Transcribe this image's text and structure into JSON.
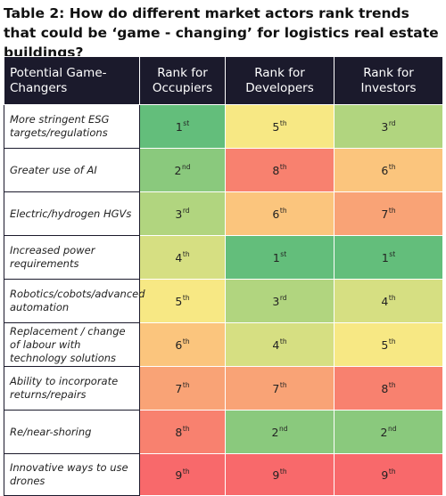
{
  "title": "Table 2: How do different market actors rank trends that could be ‘game - changing’ for logistics real estate buildings?",
  "headers": [
    "Potential Game-Changers",
    "Rank for Occupiers",
    "Rank for Developers",
    "Rank for Investors"
  ],
  "rows": [
    {
      "label": "More stringent ESG targets/regulations",
      "cells": [
        {
          "num": "1",
          "suf": "st",
          "color": "#63be7b"
        },
        {
          "num": "5",
          "suf": "th",
          "color": "#f7e884"
        },
        {
          "num": "3",
          "suf": "rd",
          "color": "#b1d57f"
        }
      ]
    },
    {
      "label": "Greater use of AI",
      "cells": [
        {
          "num": "2",
          "suf": "nd",
          "color": "#8ac97d"
        },
        {
          "num": "8",
          "suf": "th",
          "color": "#f8816f"
        },
        {
          "num": "6",
          "suf": "th",
          "color": "#fbc57d"
        }
      ]
    },
    {
      "label": "Electric/hydrogen HGVs",
      "cells": [
        {
          "num": "3",
          "suf": "rd",
          "color": "#b1d57f"
        },
        {
          "num": "6",
          "suf": "th",
          "color": "#fbc57d"
        },
        {
          "num": "7",
          "suf": "th",
          "color": "#f9a376"
        }
      ]
    },
    {
      "label": "Increased power requirements",
      "cells": [
        {
          "num": "4",
          "suf": "th",
          "color": "#d6df82"
        },
        {
          "num": "1",
          "suf": "st",
          "color": "#63be7b"
        },
        {
          "num": "1",
          "suf": "st",
          "color": "#63be7b"
        }
      ]
    },
    {
      "label": "Robotics/cobots/advanced automation",
      "cells": [
        {
          "num": "5",
          "suf": "th",
          "color": "#f7e884"
        },
        {
          "num": "3",
          "suf": "rd",
          "color": "#b1d57f"
        },
        {
          "num": "4",
          "suf": "th",
          "color": "#d6df82"
        }
      ]
    },
    {
      "label": "Replacement / change of labour with technology solutions",
      "cells": [
        {
          "num": "6",
          "suf": "th",
          "color": "#fbc57d"
        },
        {
          "num": "4",
          "suf": "th",
          "color": "#d6df82"
        },
        {
          "num": "5",
          "suf": "th",
          "color": "#f7e884"
        }
      ]
    },
    {
      "label": "Ability to incorporate returns/repairs",
      "cells": [
        {
          "num": "7",
          "suf": "th",
          "color": "#f9a376"
        },
        {
          "num": "7",
          "suf": "th",
          "color": "#f9a376"
        },
        {
          "num": "8",
          "suf": "th",
          "color": "#f8816f"
        }
      ]
    },
    {
      "label": "Re/near-shoring",
      "cells": [
        {
          "num": "8",
          "suf": "th",
          "color": "#f8816f"
        },
        {
          "num": "2",
          "suf": "nd",
          "color": "#8ac97d"
        },
        {
          "num": "2",
          "suf": "nd",
          "color": "#8ac97d"
        }
      ]
    },
    {
      "label": "Innovative ways to use drones",
      "cells": [
        {
          "num": "9",
          "suf": "th",
          "color": "#f8696b"
        },
        {
          "num": "9",
          "suf": "th",
          "color": "#f8696b"
        },
        {
          "num": "9",
          "suf": "th",
          "color": "#f8696b"
        }
      ]
    }
  ]
}
